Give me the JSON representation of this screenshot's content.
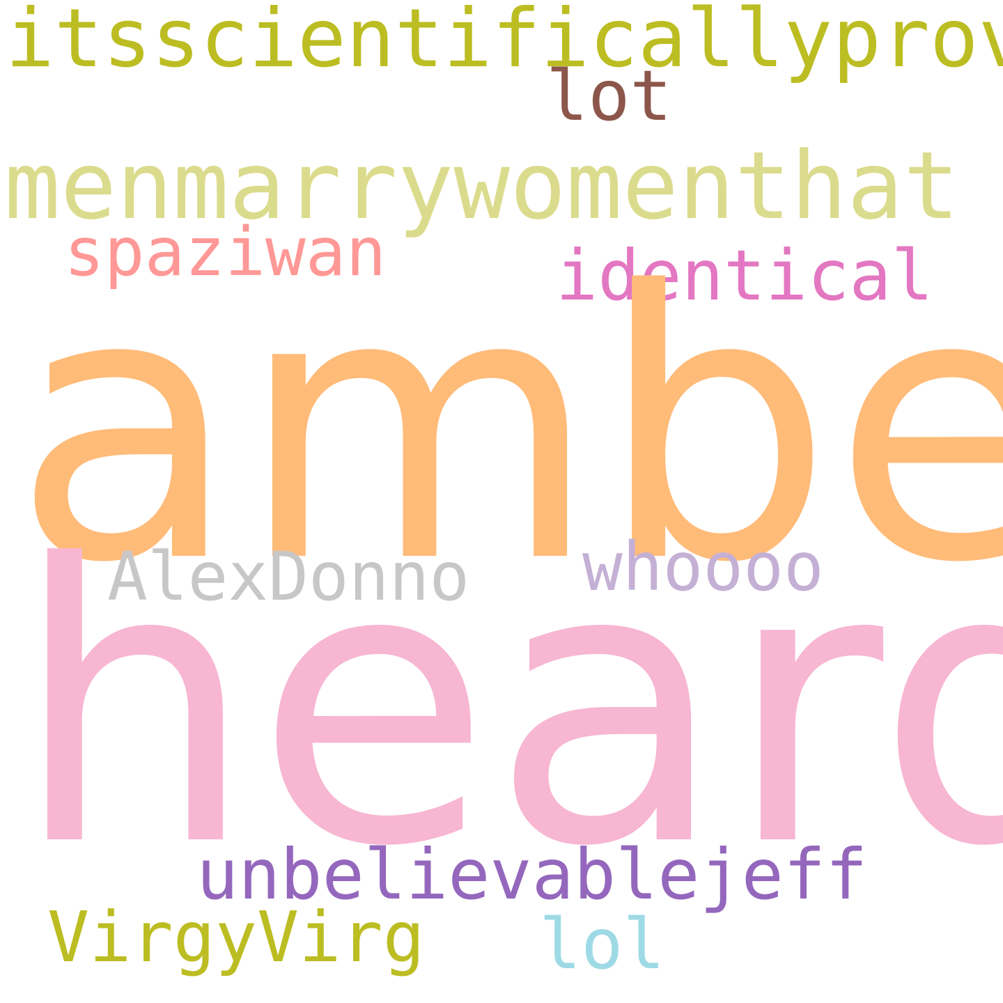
{
  "words": [
    {
      "text": "itsscientificallyproven",
      "color": "#bcbd22"
    },
    {
      "text": "lot",
      "color": "#8c564b"
    },
    {
      "text": "menmarrywomenthat",
      "color": "#dbdb8d"
    },
    {
      "text": "spaziwan",
      "color": "#ff9896"
    },
    {
      "text": "identical",
      "color": "#e377c2"
    },
    {
      "text": "amber",
      "color": "#ffbb78"
    },
    {
      "text": "AlexDonno",
      "color": "#c7c7c7"
    },
    {
      "text": "whoooo",
      "color": "#c5b0d5"
    },
    {
      "text": "heard",
      "color": "#f7b6d2"
    },
    {
      "text": "unbelievablejeff",
      "color": "#9467bd"
    },
    {
      "text": "VirgyVirg",
      "color": "#bcbd22"
    },
    {
      "text": "lol",
      "color": "#9edae5"
    }
  ]
}
